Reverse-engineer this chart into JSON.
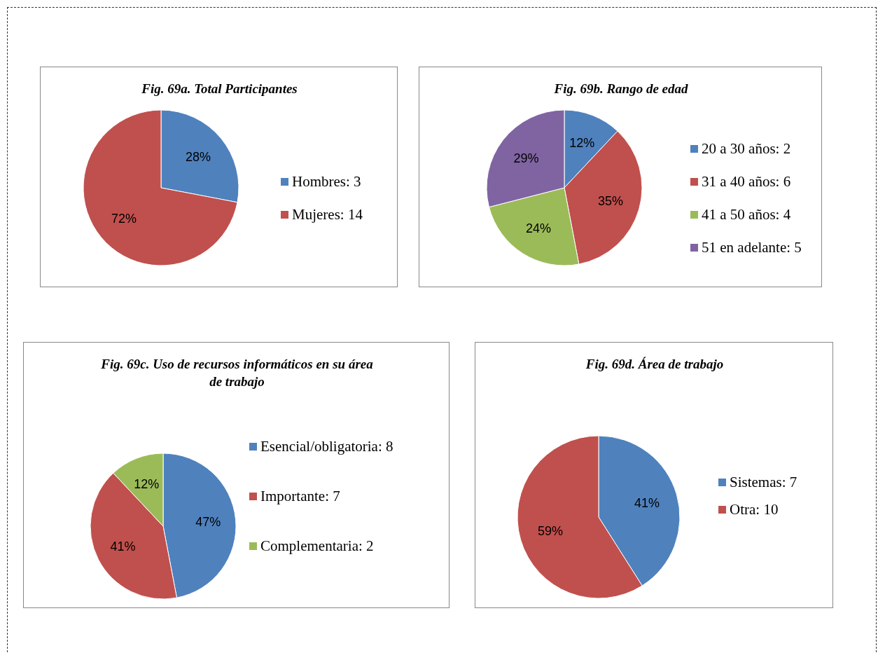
{
  "chart_data": [
    {
      "type": "pie",
      "title": "Fig. 69a. Total Participantes",
      "categories": [
        "Hombres: 3",
        "Mujeres: 14"
      ],
      "values": [
        28,
        72
      ],
      "value_labels": [
        "28%",
        "72%"
      ],
      "colors": [
        "#4f81bd",
        "#c0504d"
      ],
      "legend": "right"
    },
    {
      "type": "pie",
      "title": "Fig. 69b. Rango de edad",
      "categories": [
        "20 a 30 años: 2",
        "31 a 40 años: 6",
        "41 a 50 años: 4",
        "51 en adelante: 5"
      ],
      "values": [
        12,
        35,
        24,
        29
      ],
      "value_labels": [
        "12%",
        "35%",
        "24%",
        "29%"
      ],
      "colors": [
        "#4f81bd",
        "#c0504d",
        "#9bbb59",
        "#8064a2"
      ],
      "legend": "right"
    },
    {
      "type": "pie",
      "title": "Fig. 69c. Uso de recursos informáticos en su área de trabajo",
      "categories": [
        "Esencial/obligatoria: 8",
        "Importante: 7",
        "Complementaria: 2"
      ],
      "values": [
        47,
        41,
        12
      ],
      "value_labels": [
        "47%",
        "41%",
        "12%"
      ],
      "colors": [
        "#4f81bd",
        "#c0504d",
        "#9bbb59"
      ],
      "legend": "right"
    },
    {
      "type": "pie",
      "title": "Fig. 69d. Área de trabajo",
      "categories": [
        "Sistemas: 7",
        "Otra: 10"
      ],
      "values": [
        41,
        59
      ],
      "value_labels": [
        "41%",
        "59%"
      ],
      "colors": [
        "#4f81bd",
        "#c0504d"
      ],
      "legend": "right"
    }
  ]
}
